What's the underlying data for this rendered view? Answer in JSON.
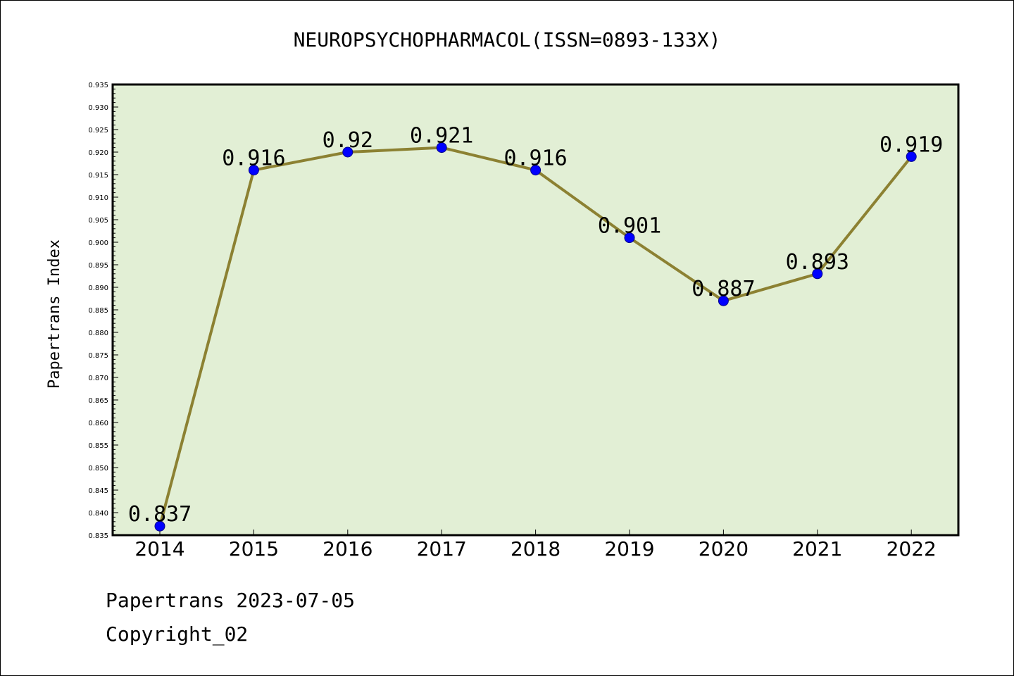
{
  "chart_data": {
    "type": "line",
    "title": "NEUROPSYCHOPHARMACOL(ISSN=0893-133X)",
    "ylabel": "Papertrans Index",
    "xlabel": "",
    "categories": [
      "2014",
      "2015",
      "2016",
      "2017",
      "2018",
      "2019",
      "2020",
      "2021",
      "2022"
    ],
    "values": [
      0.837,
      0.916,
      0.92,
      0.921,
      0.916,
      0.901,
      0.887,
      0.893,
      0.919
    ],
    "data_labels": [
      "0.837",
      "0.916",
      "0.92",
      "0.921",
      "0.916",
      "0.901",
      "0.887",
      "0.893",
      "0.919"
    ],
    "ylim": [
      0.835,
      0.935
    ],
    "ytick_step": 0.005,
    "ytick_labels": [
      "0.835",
      "0.840",
      "0.845",
      "0.850",
      "0.855",
      "0.860",
      "0.865",
      "0.870",
      "0.875",
      "0.880",
      "0.885",
      "0.890",
      "0.895",
      "0.900",
      "0.905",
      "0.910",
      "0.915",
      "0.920",
      "0.925",
      "0.930",
      "0.935"
    ],
    "grid": false,
    "colors": {
      "plot_background": "#e2efd5",
      "line": "#8c8132",
      "marker": "#0000ff"
    }
  },
  "footer": {
    "line1": "Papertrans 2023-07-05",
    "line2": "Copyright_02"
  }
}
